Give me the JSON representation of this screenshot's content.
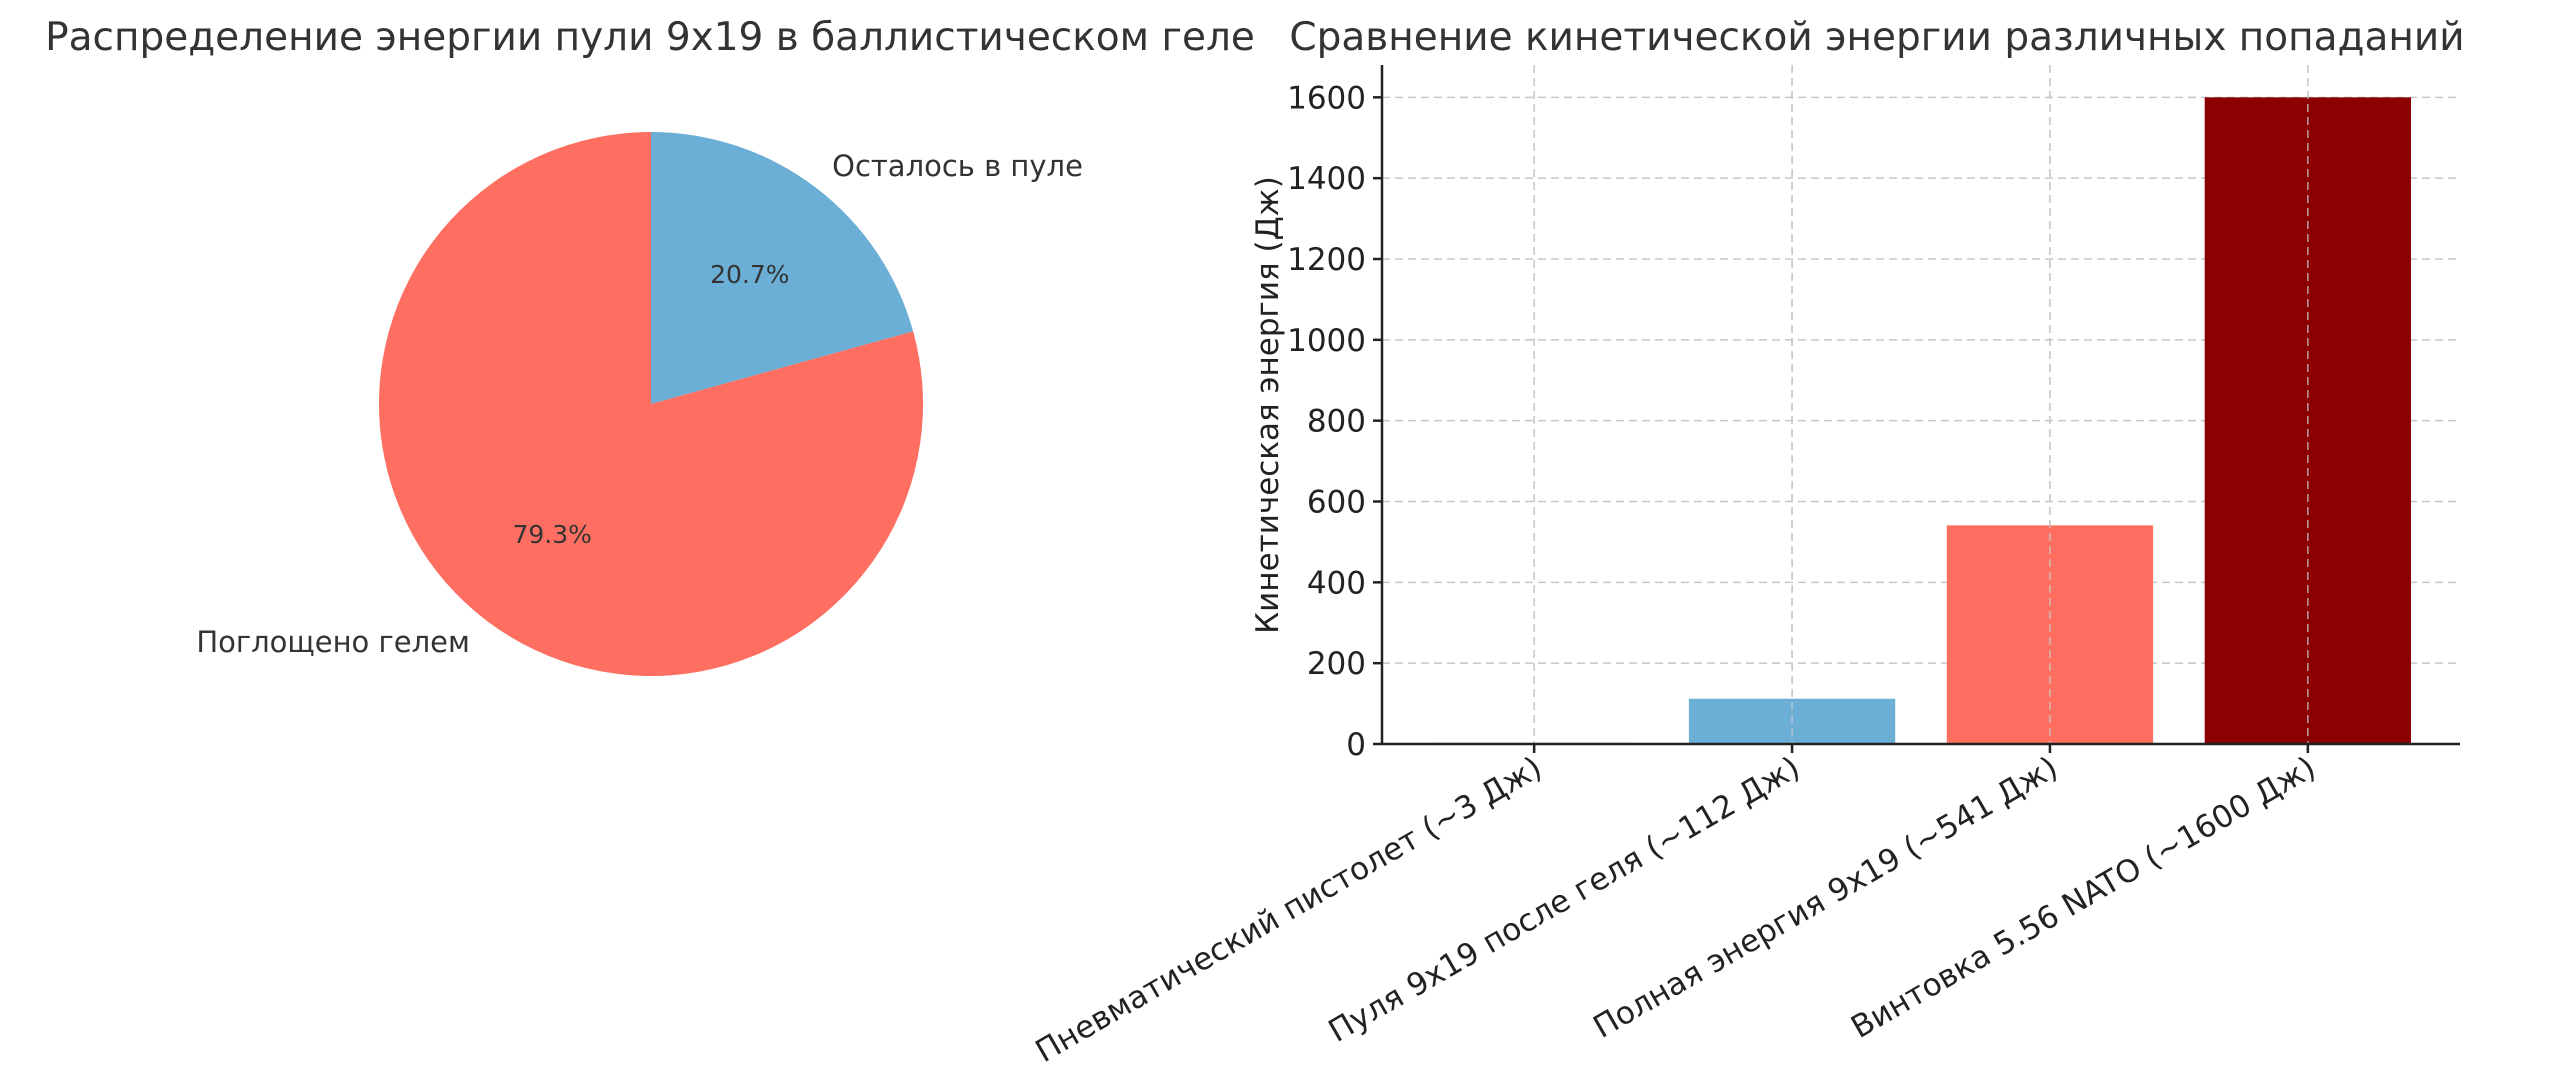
{
  "chart_data": [
    {
      "type": "pie",
      "title": "Распределение энергии пули 9x19 в баллистическом геле",
      "labels": [
        "Осталось в пуле",
        "Поглощено гелем"
      ],
      "values": [
        20.7,
        79.3
      ],
      "value_labels": [
        "20.7%",
        "79.3%"
      ],
      "colors": [
        "#6baed6",
        "#ff6f61"
      ],
      "start_angle_deg": 90,
      "direction": "clockwise"
    },
    {
      "type": "bar",
      "title": "Сравнение кинетической энергии различных попаданий",
      "ylabel": "Кинетическая энергия (Дж)",
      "categories": [
        "Пневматический пистолет (~3 Дж)",
        "Пуля 9x19 после геля (~112 Дж)",
        "Полная энергия 9x19 (~541 Дж)",
        "Винтовка 5.56 NATO (~1600 Дж)"
      ],
      "values": [
        3,
        112,
        541,
        1600
      ],
      "colors": [
        "#6baed6",
        "#6baed6",
        "#ff6f61",
        "#8b0000"
      ],
      "ylim": [
        0,
        1680
      ],
      "yticks": [
        0,
        200,
        400,
        600,
        800,
        1000,
        1200,
        1400,
        1600
      ],
      "grid": true
    }
  ]
}
